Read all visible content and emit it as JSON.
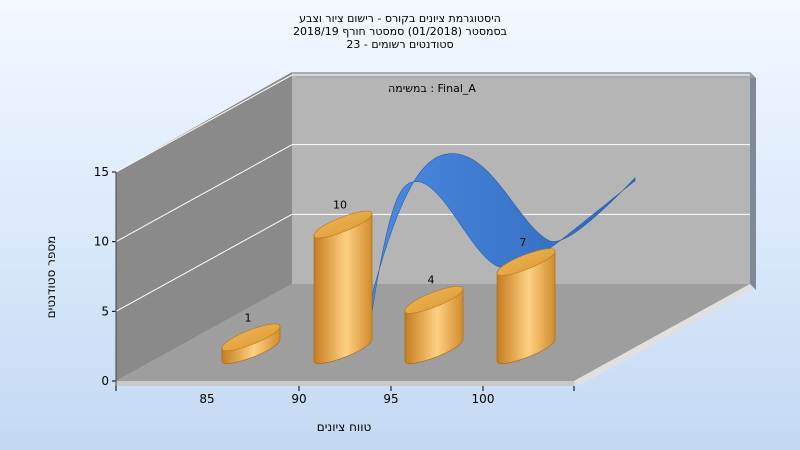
{
  "chart_data": {
    "type": "bar",
    "title_lines": [
      "היסטוגרמת ציונים בקורס - רישום ציור וצבע",
      "בסמסטר  (01/2018)  סמסטר חורף 2018/19",
      "סטודנטים רשומים - 23"
    ],
    "annotation": "במשימה : Final_A",
    "xlabel": "טווח ציונים",
    "ylabel": "מספר סטודנטים",
    "categories": [
      "85",
      "90",
      "95",
      "100"
    ],
    "values": [
      1,
      10,
      4,
      7
    ],
    "ylim": [
      0,
      15
    ],
    "yticks": [
      0,
      5,
      10,
      15
    ],
    "grid": true,
    "legend": "none",
    "bar_color": "#e8a640",
    "curve_color": "#3a78cc",
    "curve_values": [
      6,
      15,
      7,
      12
    ]
  }
}
